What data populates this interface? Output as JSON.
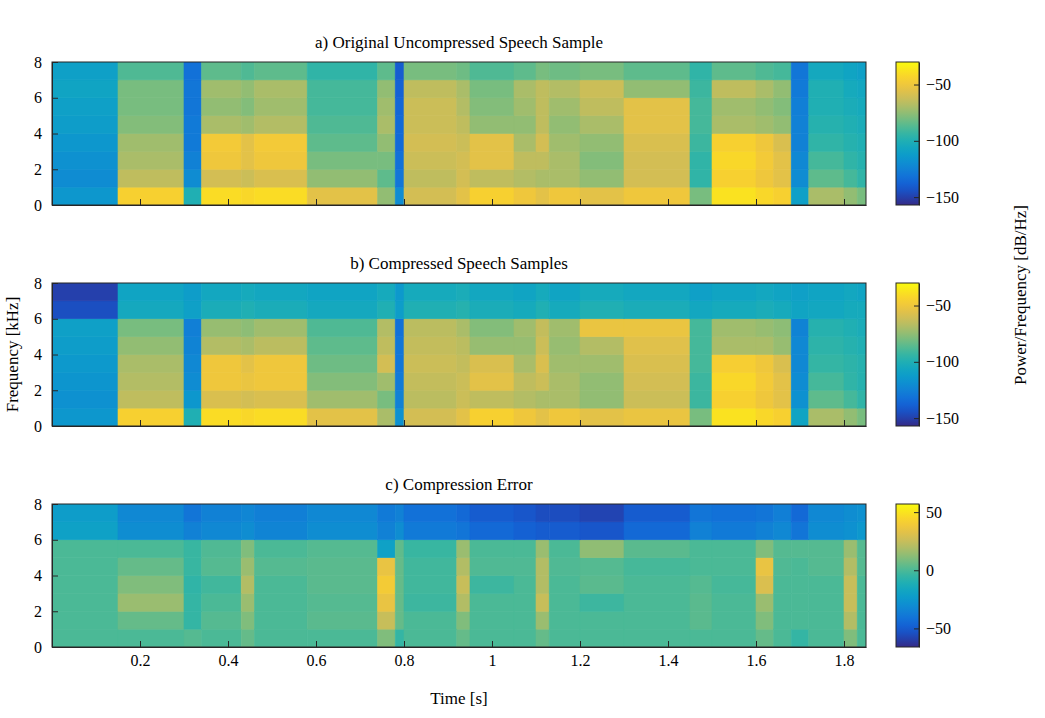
{
  "chart_data": [
    {
      "type": "heatmap",
      "title": "a) Original Uncompressed Speech Sample",
      "xlim": [
        0,
        1.85
      ],
      "xticks": [
        0.2,
        0.4,
        0.6,
        0.8,
        1,
        1.2,
        1.4,
        1.6,
        1.8
      ],
      "ylim": [
        0,
        8
      ],
      "yticks": [
        0,
        2,
        4,
        6,
        8
      ],
      "tick_labels": "y",
      "x_bins": [
        0,
        0.15,
        0.3,
        0.34,
        0.43,
        0.46,
        0.58,
        0.74,
        0.78,
        0.8,
        0.92,
        0.95,
        1.05,
        1.1,
        1.13,
        1.2,
        1.3,
        1.45,
        1.5,
        1.6,
        1.64,
        1.68,
        1.72,
        1.8,
        1.83,
        1.85
      ],
      "y_bins": [
        0,
        1,
        2,
        3,
        4,
        5,
        6,
        7,
        8
      ],
      "cells": [
        [
          -115,
          -45,
          -100,
          -40,
          -42,
          -40,
          -55,
          -75,
          -120,
          -60,
          -55,
          -45,
          -50,
          -55,
          -50,
          -55,
          -50,
          -80,
          -38,
          -42,
          -45,
          -110,
          -70,
          -75,
          -80
        ],
        [
          -120,
          -65,
          -120,
          -60,
          -62,
          -58,
          -75,
          -85,
          -130,
          -65,
          -60,
          -65,
          -68,
          -70,
          -70,
          -75,
          -60,
          -95,
          -45,
          -50,
          -55,
          -120,
          -85,
          -90,
          -95
        ],
        [
          -118,
          -70,
          -125,
          -50,
          -55,
          -50,
          -80,
          -80,
          -132,
          -62,
          -60,
          -55,
          -65,
          -65,
          -70,
          -78,
          -60,
          -95,
          -42,
          -48,
          -55,
          -122,
          -90,
          -95,
          -98
        ],
        [
          -115,
          -72,
          -128,
          -48,
          -55,
          -48,
          -85,
          -75,
          -135,
          -60,
          -62,
          -55,
          -70,
          -60,
          -72,
          -75,
          -58,
          -92,
          -45,
          -50,
          -58,
          -125,
          -95,
          -98,
          -100
        ],
        [
          -112,
          -78,
          -128,
          -70,
          -72,
          -68,
          -88,
          -70,
          -135,
          -62,
          -65,
          -75,
          -75,
          -65,
          -75,
          -70,
          -55,
          -90,
          -70,
          -72,
          -75,
          -125,
          -98,
          -100,
          -102
        ],
        [
          -110,
          -80,
          -130,
          -75,
          -78,
          -72,
          -90,
          -72,
          -136,
          -62,
          -68,
          -78,
          -72,
          -65,
          -72,
          -65,
          -55,
          -90,
          -72,
          -75,
          -78,
          -126,
          -100,
          -102,
          -104
        ],
        [
          -108,
          -80,
          -130,
          -72,
          -75,
          -70,
          -90,
          -75,
          -138,
          -65,
          -70,
          -80,
          -70,
          -65,
          -68,
          -62,
          -75,
          -92,
          -65,
          -70,
          -75,
          -128,
          -100,
          -104,
          -106
        ],
        [
          -110,
          -88,
          -132,
          -85,
          -88,
          -85,
          -95,
          -85,
          -140,
          -80,
          -82,
          -88,
          -85,
          -80,
          -82,
          -80,
          -85,
          -95,
          -85,
          -88,
          -90,
          -130,
          -105,
          -108,
          -110
        ]
      ],
      "zlim": [
        -157,
        -30
      ],
      "zticks": [
        {
          "value": -50,
          "label": "−50"
        },
        {
          "value": -100,
          "label": "−100"
        },
        {
          "value": -150,
          "label": "−150"
        }
      ]
    },
    {
      "type": "heatmap",
      "title": "b) Compressed Speech Samples",
      "ylabel": "Frequency [kHz]",
      "colorbar_label": "Power/Frequency [dB/Hz]",
      "xlim": [
        0,
        1.85
      ],
      "xticks": [
        0.2,
        0.4,
        0.6,
        0.8,
        1,
        1.2,
        1.4,
        1.6,
        1.8
      ],
      "ylim": [
        0,
        8
      ],
      "yticks": [
        0,
        2,
        4,
        6,
        8
      ],
      "tick_labels": "y",
      "x_bins": [
        0,
        0.15,
        0.3,
        0.34,
        0.43,
        0.46,
        0.58,
        0.74,
        0.78,
        0.8,
        0.92,
        0.95,
        1.05,
        1.1,
        1.13,
        1.2,
        1.3,
        1.45,
        1.5,
        1.6,
        1.64,
        1.68,
        1.72,
        1.8,
        1.83,
        1.85
      ],
      "y_bins": [
        0,
        1,
        2,
        3,
        4,
        5,
        6,
        7,
        8
      ],
      "cells": [
        [
          -115,
          -45,
          -100,
          -40,
          -42,
          -40,
          -55,
          -70,
          -118,
          -60,
          -55,
          -45,
          -50,
          -55,
          -50,
          -55,
          -52,
          -80,
          -38,
          -42,
          -45,
          -108,
          -70,
          -75,
          -80
        ],
        [
          -118,
          -65,
          -115,
          -58,
          -60,
          -58,
          -72,
          -80,
          -125,
          -66,
          -62,
          -65,
          -68,
          -70,
          -70,
          -75,
          -62,
          -92,
          -45,
          -50,
          -55,
          -118,
          -85,
          -90,
          -95
        ],
        [
          -116,
          -68,
          -120,
          -50,
          -52,
          -50,
          -78,
          -72,
          -128,
          -64,
          -62,
          -55,
          -65,
          -62,
          -70,
          -75,
          -60,
          -92,
          -42,
          -48,
          -55,
          -120,
          -90,
          -95,
          -98
        ],
        [
          -114,
          -70,
          -122,
          -50,
          -55,
          -50,
          -82,
          -60,
          -130,
          -62,
          -64,
          -58,
          -70,
          -58,
          -72,
          -72,
          -58,
          -90,
          -46,
          -50,
          -58,
          -122,
          -94,
          -96,
          -98
        ],
        [
          -112,
          -75,
          -124,
          -68,
          -70,
          -66,
          -85,
          -65,
          -130,
          -64,
          -66,
          -74,
          -74,
          -62,
          -74,
          -68,
          -56,
          -90,
          -70,
          -70,
          -74,
          -122,
          -96,
          -98,
          -100
        ],
        [
          -110,
          -80,
          -126,
          -74,
          -76,
          -72,
          -88,
          -68,
          -132,
          -66,
          -70,
          -78,
          -72,
          -64,
          -72,
          -52,
          -52,
          -90,
          -72,
          -74,
          -76,
          -124,
          -98,
          -100,
          -102
        ],
        [
          -145,
          -105,
          -110,
          -102,
          -100,
          -102,
          -105,
          -100,
          -112,
          -100,
          -98,
          -102,
          -104,
          -100,
          -104,
          -100,
          -102,
          -106,
          -104,
          -102,
          -104,
          -108,
          -106,
          -104,
          -104
        ],
        [
          -150,
          -108,
          -112,
          -106,
          -104,
          -106,
          -108,
          -104,
          -114,
          -104,
          -102,
          -106,
          -108,
          -104,
          -108,
          -104,
          -106,
          -110,
          -108,
          -106,
          -108,
          -110,
          -108,
          -106,
          -108
        ]
      ],
      "zlim": [
        -157,
        -30
      ],
      "zticks": [
        {
          "value": -50,
          "label": "−50"
        },
        {
          "value": -100,
          "label": "−100"
        },
        {
          "value": -150,
          "label": "−150"
        }
      ]
    },
    {
      "type": "heatmap",
      "title": "c) Compression Error",
      "xlabel": "Time [s]",
      "xlim": [
        0,
        1.85
      ],
      "xticks": [
        0.2,
        0.4,
        0.6,
        0.8,
        1,
        1.2,
        1.4,
        1.6,
        1.8
      ],
      "ylim": [
        0,
        8
      ],
      "yticks": [
        0,
        2,
        4,
        6,
        8
      ],
      "x_bins": [
        0,
        0.15,
        0.3,
        0.34,
        0.43,
        0.46,
        0.58,
        0.74,
        0.78,
        0.8,
        0.92,
        0.95,
        1.05,
        1.1,
        1.13,
        1.2,
        1.3,
        1.45,
        1.5,
        1.6,
        1.64,
        1.68,
        1.72,
        1.8,
        1.83,
        1.85
      ],
      "y_bins": [
        0,
        1,
        2,
        3,
        4,
        5,
        6,
        7,
        8
      ],
      "cells": [
        [
          0,
          0,
          2,
          0,
          5,
          0,
          0,
          10,
          -5,
          0,
          5,
          0,
          0,
          5,
          0,
          0,
          0,
          0,
          0,
          5,
          0,
          -5,
          0,
          10,
          0
        ],
        [
          0,
          5,
          -5,
          2,
          10,
          0,
          3,
          25,
          5,
          0,
          10,
          0,
          0,
          15,
          0,
          0,
          0,
          3,
          0,
          10,
          0,
          0,
          0,
          20,
          0
        ],
        [
          0,
          15,
          -5,
          0,
          15,
          0,
          2,
          35,
          5,
          -3,
          20,
          0,
          0,
          25,
          0,
          -3,
          0,
          3,
          0,
          15,
          0,
          0,
          0,
          25,
          0
        ],
        [
          0,
          10,
          -6,
          -2,
          20,
          0,
          3,
          40,
          5,
          -2,
          25,
          -3,
          0,
          20,
          0,
          3,
          0,
          2,
          -1,
          30,
          0,
          0,
          0,
          25,
          0
        ],
        [
          0,
          5,
          -4,
          2,
          15,
          2,
          3,
          35,
          5,
          -2,
          20,
          1,
          1,
          20,
          1,
          2,
          -1,
          0,
          0,
          35,
          1,
          0,
          2,
          20,
          2
        ],
        [
          0,
          0,
          -4,
          1,
          10,
          0,
          2,
          -20,
          4,
          -4,
          15,
          0,
          0,
          15,
          0,
          13,
          3,
          0,
          0,
          10,
          2,
          2,
          2,
          15,
          2
        ],
        [
          -20,
          -30,
          -35,
          -32,
          -30,
          -34,
          -30,
          -35,
          -30,
          -38,
          -40,
          -45,
          -48,
          -50,
          -50,
          -52,
          -45,
          -35,
          -38,
          -35,
          -32,
          -40,
          -30,
          -28,
          -25
        ],
        [
          -22,
          -32,
          -40,
          -35,
          -33,
          -36,
          -32,
          -38,
          -35,
          -42,
          -45,
          -50,
          -52,
          -55,
          -55,
          -58,
          -50,
          -40,
          -42,
          -40,
          -36,
          -45,
          -32,
          -30,
          -28
        ]
      ],
      "zlim": [
        -66,
        57
      ],
      "zticks": [
        {
          "value": -50,
          "label": "−50"
        },
        {
          "value": 0,
          "label": "0"
        },
        {
          "value": 50,
          "label": "50"
        }
      ]
    }
  ]
}
